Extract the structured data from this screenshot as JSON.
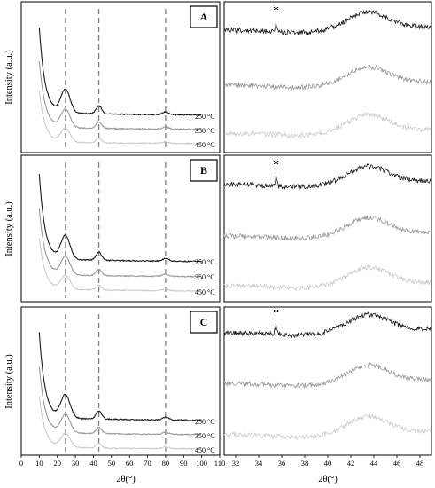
{
  "chart_data": {
    "type": "line",
    "layout": "3 rows x 2 columns of XRD patterns",
    "ylabel": "Intensity (a.u.)",
    "xlabel_left": "2θ(°)",
    "xlabel_right": "2θ(°)",
    "left_xlim": [
      0,
      110
    ],
    "left_xticks": [
      0,
      10,
      20,
      30,
      40,
      50,
      60,
      70,
      80,
      90,
      100,
      110
    ],
    "right_xlim": [
      31,
      49
    ],
    "right_xticks": [
      32,
      34,
      36,
      38,
      40,
      42,
      44,
      46,
      48
    ],
    "reference_lines_2theta": [
      24.5,
      43,
      80
    ],
    "series_colors": {
      "250 °C": "#1a1a1a",
      "350 °C": "#999999",
      "450 °C": "#cccccc"
    },
    "peak_marker": "*",
    "peak_marker_2theta": 35.5,
    "panels": [
      {
        "label": "A",
        "series": [
          {
            "name": "250 °C",
            "color": "#1a1a1a"
          },
          {
            "name": "350 °C",
            "color": "#999999"
          },
          {
            "name": "450 °C",
            "color": "#cccccc"
          }
        ]
      },
      {
        "label": "B",
        "series": [
          {
            "name": "250 °C",
            "color": "#1a1a1a"
          },
          {
            "name": "350 °C",
            "color": "#999999"
          },
          {
            "name": "450 °C",
            "color": "#cccccc"
          }
        ]
      },
      {
        "label": "C",
        "series": [
          {
            "name": "250 °C",
            "color": "#1a1a1a"
          },
          {
            "name": "350 °C",
            "color": "#999999"
          },
          {
            "name": "450 °C",
            "color": "#cccccc"
          }
        ]
      }
    ]
  }
}
